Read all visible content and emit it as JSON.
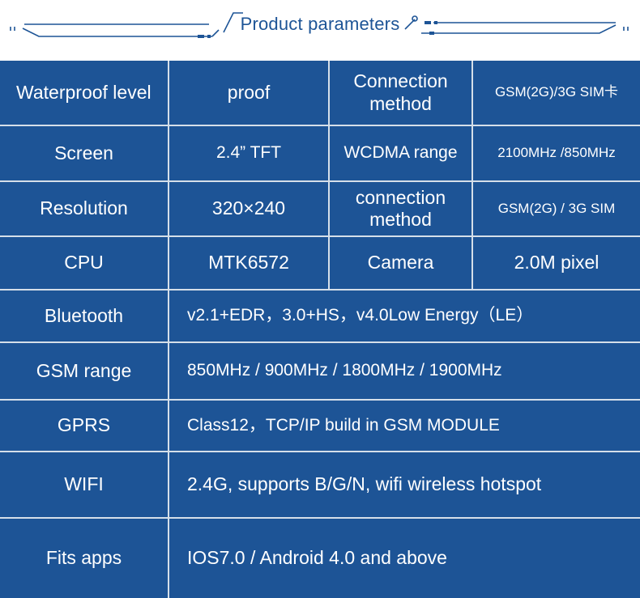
{
  "header": {
    "title": "Product parameters",
    "accent_color": "#1d5496"
  },
  "rows": [
    {
      "cells": [
        "Waterproof level",
        "proof",
        "Connection method",
        "GSM(2G)/3G SIM卡"
      ]
    },
    {
      "cells": [
        "Screen",
        "2.4”   TFT",
        "WCDMA range",
        "2100MHz /850MHz"
      ]
    },
    {
      "cells": [
        "Resolution",
        "320×240",
        "connection method",
        "GSM(2G) / 3G SIM"
      ]
    },
    {
      "cells": [
        "CPU",
        "MTK6572",
        "Camera",
        "2.0M pixel"
      ]
    },
    {
      "cells": [
        "Bluetooth",
        "v2.1+EDR，3.0+HS，v4.0Low Energy（LE）"
      ]
    },
    {
      "cells": [
        "GSM range",
        "850MHz / 900MHz / 1800MHz / 1900MHz"
      ]
    },
    {
      "cells": [
        "GPRS",
        "Class12，TCP/IP build in GSM MODULE"
      ]
    },
    {
      "cells": [
        "WIFI",
        "2.4G, supports B/G/N, wifi wireless hotspot"
      ]
    },
    {
      "cells": [
        "Fits apps",
        "IOS7.0 / Android 4.0 and above"
      ]
    }
  ]
}
